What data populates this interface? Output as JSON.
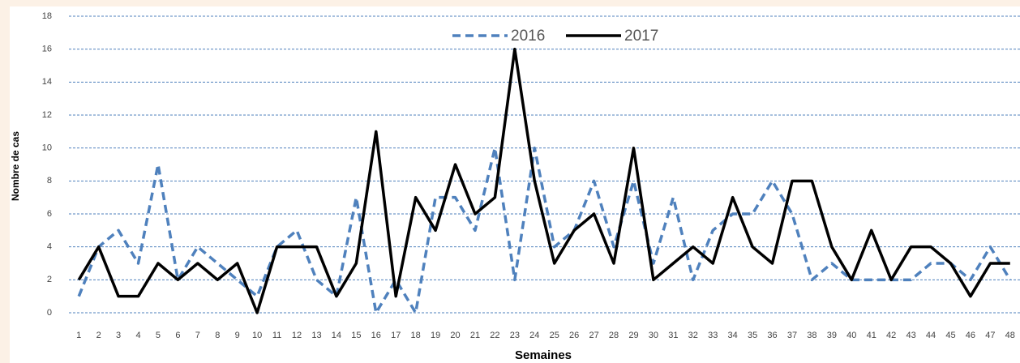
{
  "chart_data": {
    "type": "line",
    "x_label": "Semaines",
    "y_label": "Nombre de cas",
    "categories": [
      "1",
      "2",
      "3",
      "4",
      "5",
      "6",
      "7",
      "8",
      "9",
      "10",
      "11",
      "12",
      "13",
      "14",
      "15",
      "16",
      "17",
      "18",
      "19",
      "20",
      "21",
      "22",
      "23",
      "24",
      "25",
      "26",
      "27",
      "28",
      "29",
      "30",
      "31",
      "32",
      "33",
      "34",
      "35",
      "36",
      "37",
      "38",
      "39",
      "40",
      "41",
      "42",
      "43",
      "44",
      "45",
      "46",
      "47",
      "48"
    ],
    "series": [
      {
        "name": "2016",
        "color": "#4f81bd",
        "dashed": true,
        "values": [
          1,
          4,
          5,
          3,
          9,
          2,
          4,
          3,
          2,
          1,
          4,
          5,
          2,
          1,
          7,
          0,
          2,
          0,
          7,
          7,
          5,
          10,
          2,
          10,
          4,
          5,
          8,
          4,
          8,
          3,
          7,
          2,
          5,
          6,
          6,
          8,
          6,
          2,
          3,
          2,
          2,
          2,
          2,
          3,
          3,
          2,
          4,
          2
        ]
      },
      {
        "name": "2017",
        "color": "#000000",
        "dashed": false,
        "values": [
          2,
          4,
          1,
          1,
          3,
          2,
          3,
          2,
          3,
          0,
          4,
          4,
          4,
          1,
          3,
          11,
          1,
          7,
          5,
          9,
          6,
          7,
          16,
          8,
          3,
          5,
          6,
          3,
          10,
          2,
          3,
          4,
          3,
          7,
          4,
          3,
          8,
          8,
          4,
          2,
          5,
          2,
          4,
          4,
          3,
          1,
          3,
          3
        ]
      }
    ],
    "ylim": [
      0,
      18
    ],
    "yticks": [
      0,
      2,
      4,
      6,
      8,
      10,
      12,
      14,
      16,
      18
    ],
    "grid": true,
    "legend": "top"
  }
}
